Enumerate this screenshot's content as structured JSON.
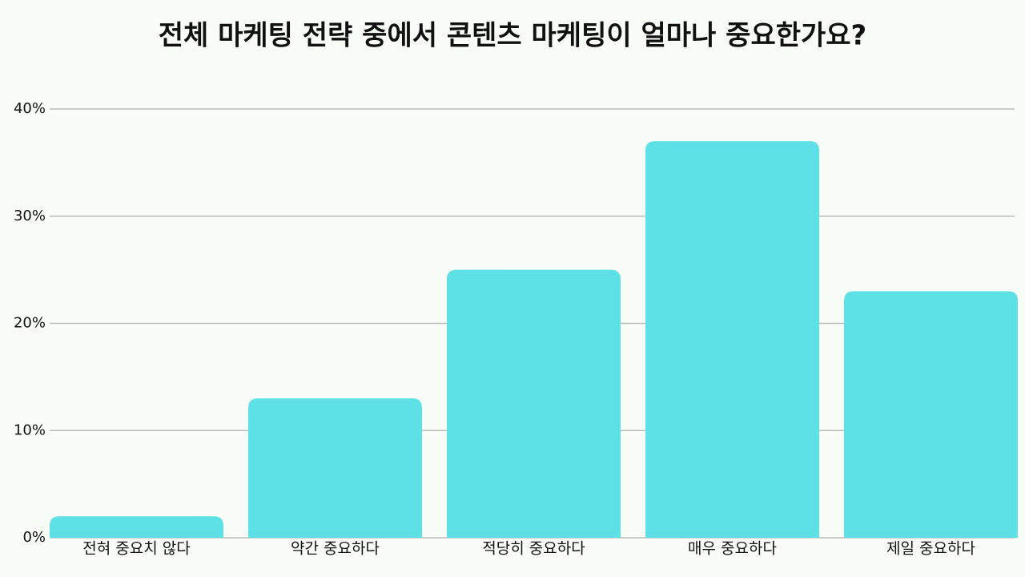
{
  "chart_data": {
    "type": "bar",
    "title": "전체 마케팅 전략 중에서 콘텐츠 마케팅이 얼마나 중요한가요?",
    "categories": [
      "전혀 중요치 않다",
      "약간 중요하다",
      "적당히 중요하다",
      "매우 중요하다",
      "제일 중요하다"
    ],
    "values": [
      2,
      13,
      25,
      37,
      23
    ],
    "color": "#5ee1e6",
    "ylim": [
      0,
      40
    ],
    "yticks": [
      {
        "value": 0,
        "label": "0%"
      },
      {
        "value": 10,
        "label": "10%"
      },
      {
        "value": 20,
        "label": "20%"
      },
      {
        "value": 30,
        "label": "30%"
      },
      {
        "value": 40,
        "label": "40%"
      }
    ],
    "grid": true
  }
}
